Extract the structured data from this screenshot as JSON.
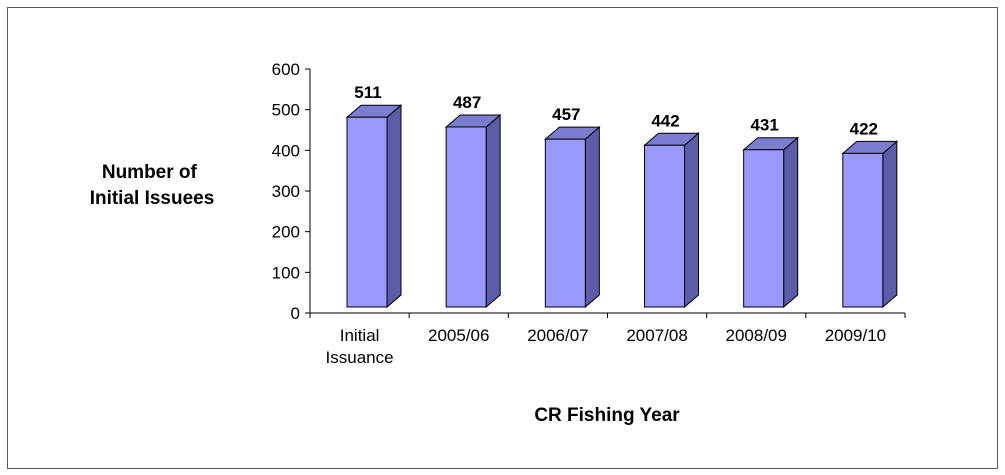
{
  "chart_data": {
    "type": "bar",
    "categories": [
      "Initial Issuance",
      "2005/06",
      "2006/07",
      "2007/08",
      "2008/09",
      "2009/10"
    ],
    "category_lines": [
      [
        "Initial",
        "Issuance"
      ],
      [
        "2005/06"
      ],
      [
        "2006/07"
      ],
      [
        "2007/08"
      ],
      [
        "2008/09"
      ],
      [
        "2009/10"
      ]
    ],
    "values": [
      511,
      487,
      457,
      442,
      431,
      422
    ],
    "ylabel_lines": [
      "Number of",
      "Initial Issuees"
    ],
    "xlabel": "CR Fishing Year",
    "ylim": [
      0,
      600
    ],
    "yticks": [
      0,
      100,
      200,
      300,
      400,
      500,
      600
    ],
    "bar_colors": {
      "front": "#9999ff",
      "side": "#5c5ca8",
      "top": "#7c7cd0",
      "edge": "#000000"
    },
    "grid": false,
    "legend": "none"
  }
}
